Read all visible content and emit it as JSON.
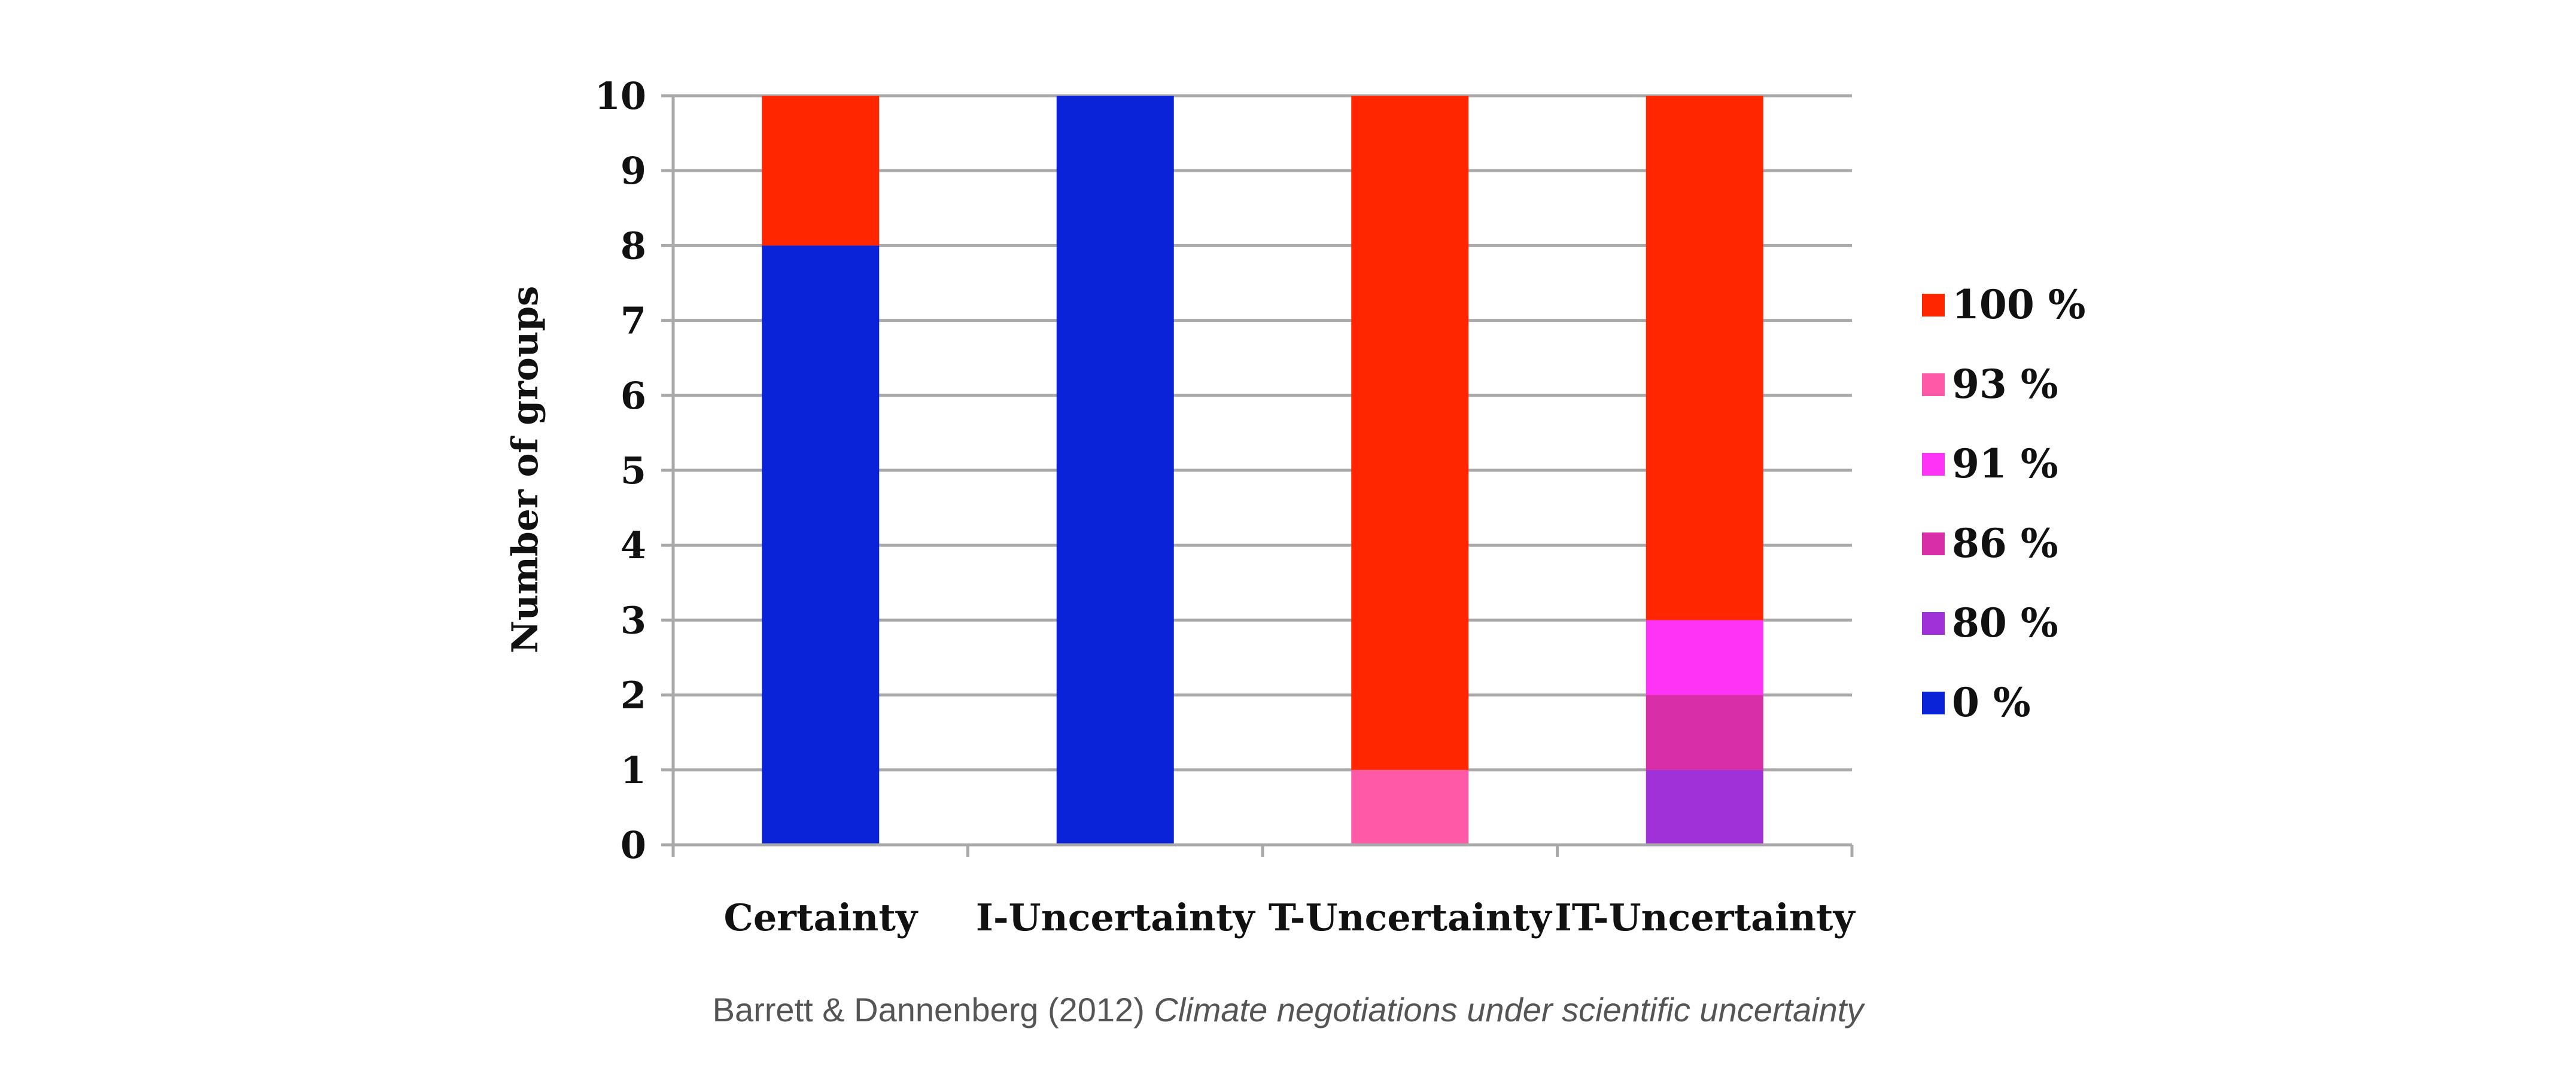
{
  "chart_data": {
    "type": "bar",
    "stacked": true,
    "categories": [
      "Certainty",
      "I-Uncertainty",
      "T-Uncertainty",
      "IT-Uncertainty"
    ],
    "ylabel": "Number of groups",
    "ylim": [
      0,
      10
    ],
    "yticks": [
      "0",
      "1",
      "2",
      "3",
      "4",
      "5",
      "6",
      "7",
      "8",
      "9",
      "10"
    ],
    "grid": true,
    "legend_position": "right",
    "series": [
      {
        "name": "0 %",
        "color": "#0a22d8",
        "values": [
          8,
          10,
          0,
          0
        ]
      },
      {
        "name": "80 %",
        "color": "#a030d8",
        "values": [
          0,
          0,
          0,
          1
        ]
      },
      {
        "name": "86 %",
        "color": "#d82ea6",
        "values": [
          0,
          0,
          0,
          1
        ]
      },
      {
        "name": "91 %",
        "color": "#ff33f5",
        "values": [
          0,
          0,
          0,
          1
        ]
      },
      {
        "name": "93 %",
        "color": "#ff5aa8",
        "values": [
          0,
          0,
          1,
          0
        ]
      },
      {
        "name": "100 %",
        "color": "#ff2600",
        "values": [
          2,
          0,
          9,
          7
        ]
      }
    ],
    "legend_order": [
      "100 %",
      "93 %",
      "91 %",
      "86 %",
      "80 %",
      "0 %"
    ]
  },
  "caption": {
    "plain": "Barrett & Dannenberg (2012) ",
    "italic": "Climate negotiations under scientific uncertainty"
  }
}
